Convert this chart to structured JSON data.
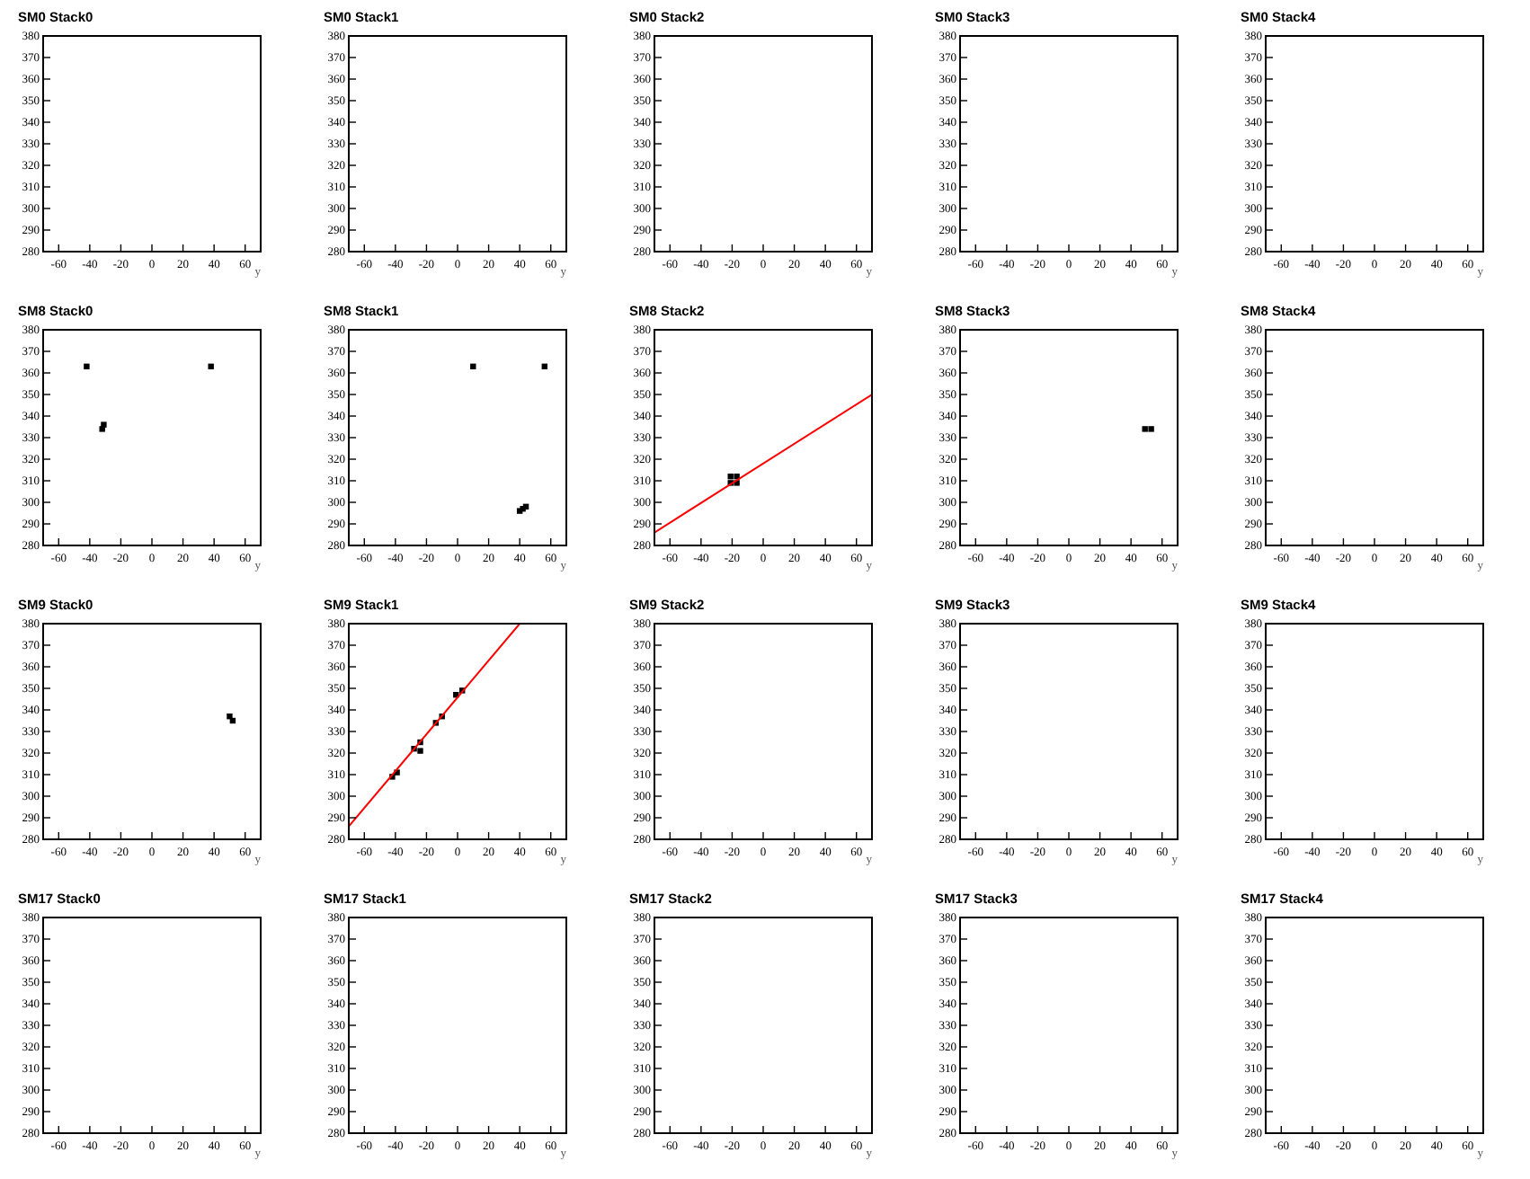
{
  "chart_data": [
    {
      "type": "scatter",
      "title": "SM0 Stack0",
      "xlabel": "y",
      "xlim": [
        -70,
        70
      ],
      "xticks": [
        -60,
        -40,
        -20,
        0,
        20,
        40,
        60
      ],
      "ylim": [
        280,
        380
      ],
      "yticks": [
        280,
        290,
        300,
        310,
        320,
        330,
        340,
        350,
        360,
        370,
        380
      ]
    },
    {
      "type": "scatter",
      "title": "SM0 Stack1",
      "xlabel": "y",
      "xlim": [
        -70,
        70
      ],
      "xticks": [
        -60,
        -40,
        -20,
        0,
        20,
        40,
        60
      ],
      "ylim": [
        280,
        380
      ],
      "yticks": [
        280,
        290,
        300,
        310,
        320,
        330,
        340,
        350,
        360,
        370,
        380
      ]
    },
    {
      "type": "scatter",
      "title": "SM0 Stack2",
      "xlabel": "y",
      "xlim": [
        -70,
        70
      ],
      "xticks": [
        -60,
        -40,
        -20,
        0,
        20,
        40,
        60
      ],
      "ylim": [
        280,
        380
      ],
      "yticks": [
        280,
        290,
        300,
        310,
        320,
        330,
        340,
        350,
        360,
        370,
        380
      ]
    },
    {
      "type": "scatter",
      "title": "SM0 Stack3",
      "xlabel": "y",
      "xlim": [
        -70,
        70
      ],
      "xticks": [
        -60,
        -40,
        -20,
        0,
        20,
        40,
        60
      ],
      "ylim": [
        280,
        380
      ],
      "yticks": [
        280,
        290,
        300,
        310,
        320,
        330,
        340,
        350,
        360,
        370,
        380
      ]
    },
    {
      "type": "scatter",
      "title": "SM0 Stack4",
      "xlabel": "y",
      "xlim": [
        -70,
        70
      ],
      "xticks": [
        -60,
        -40,
        -20,
        0,
        20,
        40,
        60
      ],
      "ylim": [
        280,
        380
      ],
      "yticks": [
        280,
        290,
        300,
        310,
        320,
        330,
        340,
        350,
        360,
        370,
        380
      ]
    },
    {
      "type": "scatter",
      "title": "SM8 Stack0",
      "xlabel": "y",
      "xlim": [
        -70,
        70
      ],
      "xticks": [
        -60,
        -40,
        -20,
        0,
        20,
        40,
        60
      ],
      "ylim": [
        280,
        380
      ],
      "yticks": [
        280,
        290,
        300,
        310,
        320,
        330,
        340,
        350,
        360,
        370,
        380
      ],
      "series": [
        {
          "color": "#000000",
          "marker": "square",
          "x": [
            -42,
            38,
            -32,
            -31
          ],
          "values": [
            363,
            363,
            334,
            336
          ]
        }
      ]
    },
    {
      "type": "scatter",
      "title": "SM8 Stack1",
      "xlabel": "y",
      "xlim": [
        -70,
        70
      ],
      "xticks": [
        -60,
        -40,
        -20,
        0,
        20,
        40,
        60
      ],
      "ylim": [
        280,
        380
      ],
      "yticks": [
        280,
        290,
        300,
        310,
        320,
        330,
        340,
        350,
        360,
        370,
        380
      ],
      "series": [
        {
          "color": "#000000",
          "marker": "square",
          "x": [
            10,
            56,
            40,
            42,
            44
          ],
          "values": [
            363,
            363,
            296,
            297,
            298
          ]
        }
      ]
    },
    {
      "type": "scatter",
      "title": "SM8 Stack2",
      "xlabel": "y",
      "xlim": [
        -70,
        70
      ],
      "xticks": [
        -60,
        -40,
        -20,
        0,
        20,
        40,
        60
      ],
      "ylim": [
        280,
        380
      ],
      "yticks": [
        280,
        290,
        300,
        310,
        320,
        330,
        340,
        350,
        360,
        370,
        380
      ],
      "series": [
        {
          "color": "#000000",
          "marker": "square",
          "x": [
            -21,
            -17,
            -21,
            -17
          ],
          "values": [
            309,
            309,
            312,
            312
          ]
        },
        {
          "type": "line",
          "color": "#ff0000",
          "x": [
            -70,
            70
          ],
          "values": [
            286,
            350
          ]
        }
      ]
    },
    {
      "type": "scatter",
      "title": "SM8 Stack3",
      "xlabel": "y",
      "xlim": [
        -70,
        70
      ],
      "xticks": [
        -60,
        -40,
        -20,
        0,
        20,
        40,
        60
      ],
      "ylim": [
        280,
        380
      ],
      "yticks": [
        280,
        290,
        300,
        310,
        320,
        330,
        340,
        350,
        360,
        370,
        380
      ],
      "series": [
        {
          "color": "#000000",
          "marker": "square",
          "x": [
            49,
            53
          ],
          "values": [
            334,
            334
          ]
        }
      ]
    },
    {
      "type": "scatter",
      "title": "SM8 Stack4",
      "xlabel": "y",
      "xlim": [
        -70,
        70
      ],
      "xticks": [
        -60,
        -40,
        -20,
        0,
        20,
        40,
        60
      ],
      "ylim": [
        280,
        380
      ],
      "yticks": [
        280,
        290,
        300,
        310,
        320,
        330,
        340,
        350,
        360,
        370,
        380
      ]
    },
    {
      "type": "scatter",
      "title": "SM9 Stack0",
      "xlabel": "y",
      "xlim": [
        -70,
        70
      ],
      "xticks": [
        -60,
        -40,
        -20,
        0,
        20,
        40,
        60
      ],
      "ylim": [
        280,
        380
      ],
      "yticks": [
        280,
        290,
        300,
        310,
        320,
        330,
        340,
        350,
        360,
        370,
        380
      ],
      "series": [
        {
          "color": "#000000",
          "marker": "square",
          "x": [
            50,
            52
          ],
          "values": [
            337,
            335
          ]
        }
      ]
    },
    {
      "type": "scatter",
      "title": "SM9 Stack1",
      "xlabel": "y",
      "xlim": [
        -70,
        70
      ],
      "xticks": [
        -60,
        -40,
        -20,
        0,
        20,
        40,
        60
      ],
      "ylim": [
        280,
        380
      ],
      "yticks": [
        280,
        290,
        300,
        310,
        320,
        330,
        340,
        350,
        360,
        370,
        380
      ],
      "series": [
        {
          "color": "#000000",
          "marker": "square",
          "x": [
            -42,
            -39,
            -28,
            -24,
            -24,
            -14,
            -10,
            -1,
            3
          ],
          "values": [
            309,
            311,
            322,
            325,
            321,
            334,
            337,
            347,
            349
          ]
        },
        {
          "type": "line",
          "color": "#ff0000",
          "x": [
            -70,
            40
          ],
          "values": [
            286,
            380
          ]
        }
      ]
    },
    {
      "type": "scatter",
      "title": "SM9 Stack2",
      "xlabel": "y",
      "xlim": [
        -70,
        70
      ],
      "xticks": [
        -60,
        -40,
        -20,
        0,
        20,
        40,
        60
      ],
      "ylim": [
        280,
        380
      ],
      "yticks": [
        280,
        290,
        300,
        310,
        320,
        330,
        340,
        350,
        360,
        370,
        380
      ]
    },
    {
      "type": "scatter",
      "title": "SM9 Stack3",
      "xlabel": "y",
      "xlim": [
        -70,
        70
      ],
      "xticks": [
        -60,
        -40,
        -20,
        0,
        20,
        40,
        60
      ],
      "ylim": [
        280,
        380
      ],
      "yticks": [
        280,
        290,
        300,
        310,
        320,
        330,
        340,
        350,
        360,
        370,
        380
      ]
    },
    {
      "type": "scatter",
      "title": "SM9 Stack4",
      "xlabel": "y",
      "xlim": [
        -70,
        70
      ],
      "xticks": [
        -60,
        -40,
        -20,
        0,
        20,
        40,
        60
      ],
      "ylim": [
        280,
        380
      ],
      "yticks": [
        280,
        290,
        300,
        310,
        320,
        330,
        340,
        350,
        360,
        370,
        380
      ]
    },
    {
      "type": "scatter",
      "title": "SM17 Stack0",
      "xlabel": "y",
      "xlim": [
        -70,
        70
      ],
      "xticks": [
        -60,
        -40,
        -20,
        0,
        20,
        40,
        60
      ],
      "ylim": [
        280,
        380
      ],
      "yticks": [
        280,
        290,
        300,
        310,
        320,
        330,
        340,
        350,
        360,
        370,
        380
      ]
    },
    {
      "type": "scatter",
      "title": "SM17 Stack1",
      "xlabel": "y",
      "xlim": [
        -70,
        70
      ],
      "xticks": [
        -60,
        -40,
        -20,
        0,
        20,
        40,
        60
      ],
      "ylim": [
        280,
        380
      ],
      "yticks": [
        280,
        290,
        300,
        310,
        320,
        330,
        340,
        350,
        360,
        370,
        380
      ]
    },
    {
      "type": "scatter",
      "title": "SM17 Stack2",
      "xlabel": "y",
      "xlim": [
        -70,
        70
      ],
      "xticks": [
        -60,
        -40,
        -20,
        0,
        20,
        40,
        60
      ],
      "ylim": [
        280,
        380
      ],
      "yticks": [
        280,
        290,
        300,
        310,
        320,
        330,
        340,
        350,
        360,
        370,
        380
      ]
    },
    {
      "type": "scatter",
      "title": "SM17 Stack3",
      "xlabel": "y",
      "xlim": [
        -70,
        70
      ],
      "xticks": [
        -60,
        -40,
        -20,
        0,
        20,
        40,
        60
      ],
      "ylim": [
        280,
        380
      ],
      "yticks": [
        280,
        290,
        300,
        310,
        320,
        330,
        340,
        350,
        360,
        370,
        380
      ]
    },
    {
      "type": "scatter",
      "title": "SM17 Stack4",
      "xlabel": "y",
      "xlim": [
        -70,
        70
      ],
      "xticks": [
        -60,
        -40,
        -20,
        0,
        20,
        40,
        60
      ],
      "ylim": [
        280,
        380
      ],
      "yticks": [
        280,
        290,
        300,
        310,
        320,
        330,
        340,
        350,
        360,
        370,
        380
      ]
    }
  ]
}
